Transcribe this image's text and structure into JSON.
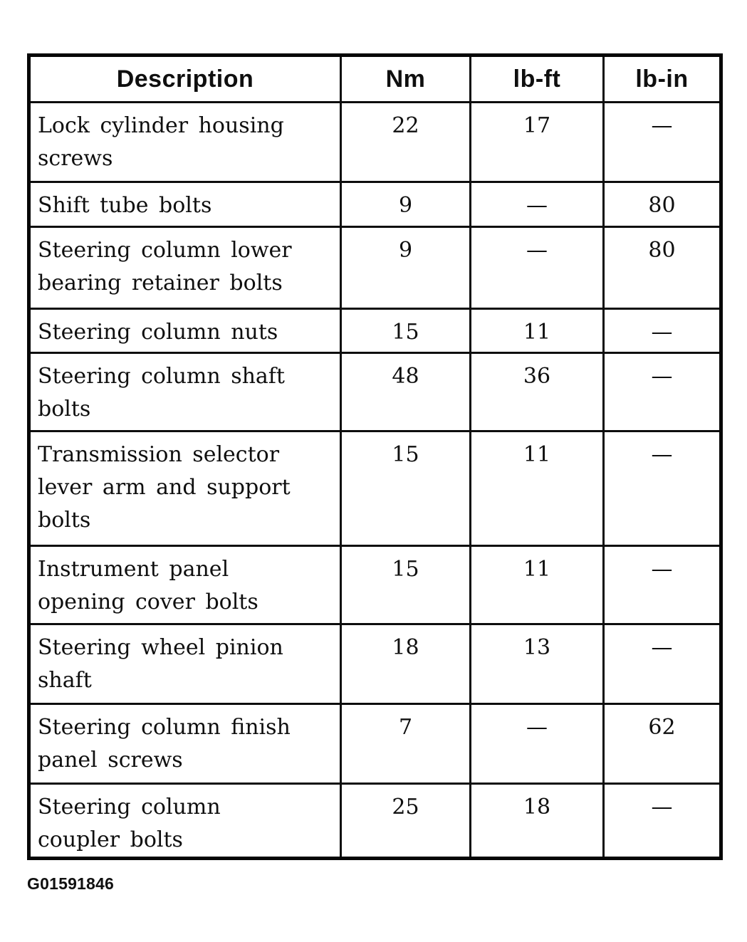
{
  "table": {
    "headers": [
      "Description",
      "Nm",
      "lb-ft",
      "lb-in"
    ],
    "rows": [
      {
        "description": "Lock cylinder housing\nscrews",
        "nm": "22",
        "lb_ft": "17",
        "lb_in": "—"
      },
      {
        "description": "Shift tube bolts",
        "nm": "9",
        "lb_ft": "—",
        "lb_in": "80"
      },
      {
        "description": "Steering column lower\nbearing retainer bolts",
        "nm": "9",
        "lb_ft": "—",
        "lb_in": "80"
      },
      {
        "description": "Steering column nuts",
        "nm": "15",
        "lb_ft": "11",
        "lb_in": "—"
      },
      {
        "description": "Steering column shaft\nbolts",
        "nm": "48",
        "lb_ft": "36",
        "lb_in": "—"
      },
      {
        "description": "Transmission selector\nlever arm and support\nbolts",
        "nm": "15",
        "lb_ft": "11",
        "lb_in": "—"
      },
      {
        "description": "Instrument panel\nopening cover bolts",
        "nm": "15",
        "lb_ft": "11",
        "lb_in": "—"
      },
      {
        "description": "Steering wheel pinion\nshaft",
        "nm": "18",
        "lb_ft": "13",
        "lb_in": "—"
      },
      {
        "description": "Steering column finish\npanel screws",
        "nm": "7",
        "lb_ft": "—",
        "lb_in": "62"
      },
      {
        "description": "Steering column\ncoupler bolts",
        "nm": "25",
        "lb_ft": "18",
        "lb_in": "—"
      }
    ]
  },
  "figure_id": "G01591846",
  "colors": {
    "ink": "#141414",
    "paper": "#ffffff"
  }
}
